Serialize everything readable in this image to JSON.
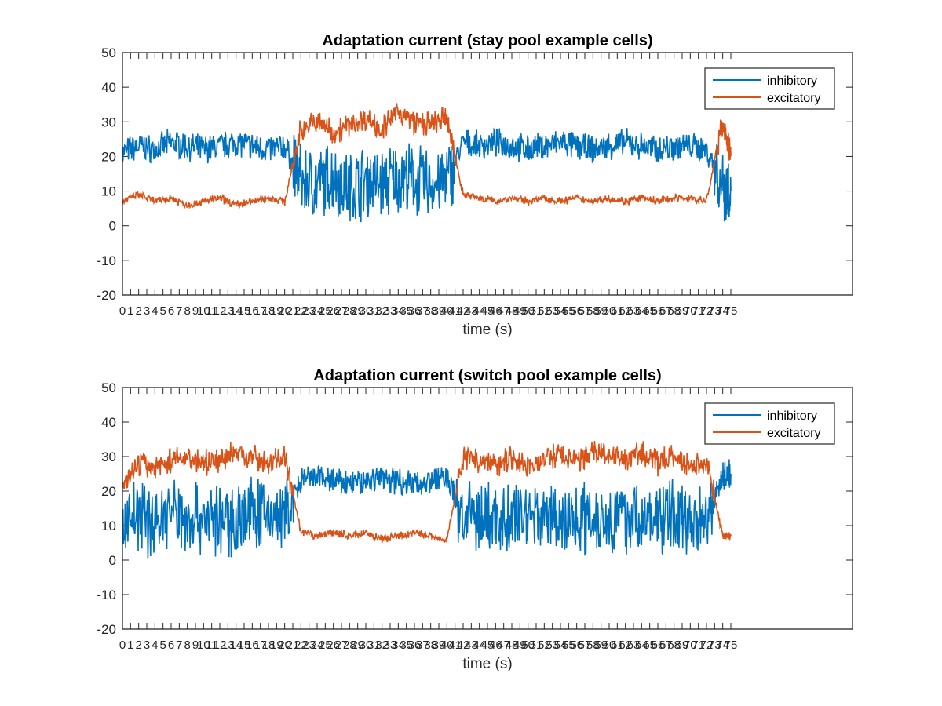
{
  "chart_data": [
    {
      "type": "line",
      "title": "Adaptation current (stay pool example cells)",
      "xlabel": "time (s)",
      "ylabel": "",
      "ylim": [
        -20,
        50
      ],
      "yticks": [
        -20,
        -10,
        0,
        10,
        20,
        30,
        40,
        50
      ],
      "xtick_labels": [
        "0",
        "1",
        "2",
        "3",
        "4",
        "5",
        "6",
        "7",
        "8",
        "9",
        "10",
        "11",
        "12",
        "13",
        "14",
        "15",
        "16",
        "17",
        "18",
        "19",
        "20",
        "21",
        "22",
        "23",
        "24",
        "25",
        "26",
        "27",
        "28",
        "29",
        "30",
        "31",
        "32",
        "33",
        "34",
        "35",
        "36",
        "37",
        "38",
        "39",
        "40",
        "41",
        "42",
        "43",
        "44",
        "45",
        "46",
        "47",
        "48",
        "49",
        "50",
        "51",
        "52",
        "53",
        "54",
        "55",
        "56",
        "57",
        "58",
        "59",
        "60",
        "61",
        "62",
        "63",
        "64",
        "65",
        "66",
        "67",
        "68",
        "69",
        "70",
        "71",
        "72",
        "73",
        "74",
        "75"
      ],
      "grid": false,
      "legend_position": "top-right",
      "x": [
        0,
        2,
        4,
        6,
        8,
        10,
        12,
        14,
        16,
        18,
        20,
        22,
        24,
        26,
        28,
        30,
        32,
        34,
        36,
        38,
        40,
        42,
        44,
        46,
        48,
        50,
        52,
        54,
        56,
        58,
        60,
        62,
        64,
        66,
        68,
        70,
        72,
        74,
        75
      ],
      "series": [
        {
          "name": "inhibitory",
          "color": "#0072BD",
          "values": [
            21,
            23,
            22,
            24,
            23,
            22,
            23,
            24,
            23,
            22,
            23,
            13,
            12,
            14,
            11,
            13,
            12,
            14,
            13,
            12,
            13,
            24,
            23,
            24,
            23,
            22,
            23,
            24,
            23,
            22,
            23,
            24,
            23,
            22,
            23,
            23,
            22,
            12,
            10
          ]
        },
        {
          "name": "excitatory",
          "color": "#D95319",
          "values": [
            7,
            9,
            7,
            8,
            6,
            7,
            8,
            6,
            7,
            8,
            7,
            28,
            30,
            27,
            29,
            31,
            28,
            33,
            30,
            29,
            31,
            9,
            8,
            7,
            8,
            7,
            8,
            7,
            8,
            7,
            8,
            7,
            8,
            7,
            8,
            8,
            7,
            30,
            20
          ]
        }
      ]
    },
    {
      "type": "line",
      "title": "Adaptation current (switch pool example cells)",
      "xlabel": "time (s)",
      "ylabel": "",
      "ylim": [
        -20,
        50
      ],
      "yticks": [
        -20,
        -10,
        0,
        10,
        20,
        30,
        40,
        50
      ],
      "xtick_labels": [
        "0",
        "1",
        "2",
        "3",
        "4",
        "5",
        "6",
        "7",
        "8",
        "9",
        "10",
        "11",
        "12",
        "13",
        "14",
        "15",
        "16",
        "17",
        "18",
        "19",
        "20",
        "21",
        "22",
        "23",
        "24",
        "25",
        "26",
        "27",
        "28",
        "29",
        "30",
        "31",
        "32",
        "33",
        "34",
        "35",
        "36",
        "37",
        "38",
        "39",
        "40",
        "41",
        "42",
        "43",
        "44",
        "45",
        "46",
        "47",
        "48",
        "49",
        "50",
        "51",
        "52",
        "53",
        "54",
        "55",
        "56",
        "57",
        "58",
        "59",
        "60",
        "61",
        "62",
        "63",
        "64",
        "65",
        "66",
        "67",
        "68",
        "69",
        "70",
        "71",
        "72",
        "73",
        "74",
        "75"
      ],
      "grid": false,
      "legend_position": "top-right",
      "x": [
        0,
        2,
        4,
        6,
        8,
        10,
        12,
        14,
        16,
        18,
        20,
        22,
        24,
        26,
        28,
        30,
        32,
        34,
        36,
        38,
        40,
        42,
        44,
        46,
        48,
        50,
        52,
        54,
        56,
        58,
        60,
        62,
        64,
        66,
        68,
        70,
        72,
        74,
        75
      ],
      "series": [
        {
          "name": "inhibitory",
          "color": "#0072BD",
          "values": [
            12,
            13,
            11,
            14,
            12,
            13,
            11,
            12,
            14,
            13,
            12,
            23,
            24,
            23,
            22,
            23,
            24,
            23,
            22,
            23,
            24,
            12,
            13,
            11,
            12,
            14,
            13,
            11,
            12,
            13,
            12,
            13,
            11,
            12,
            13,
            12,
            13,
            24,
            25
          ]
        },
        {
          "name": "excitatory",
          "color": "#D95319",
          "values": [
            22,
            28,
            27,
            29,
            30,
            28,
            29,
            31,
            30,
            28,
            30,
            8,
            7,
            8,
            7,
            8,
            6,
            7,
            8,
            7,
            6,
            30,
            29,
            28,
            30,
            27,
            29,
            31,
            28,
            32,
            30,
            29,
            31,
            28,
            30,
            27,
            29,
            7,
            7
          ]
        }
      ]
    }
  ]
}
